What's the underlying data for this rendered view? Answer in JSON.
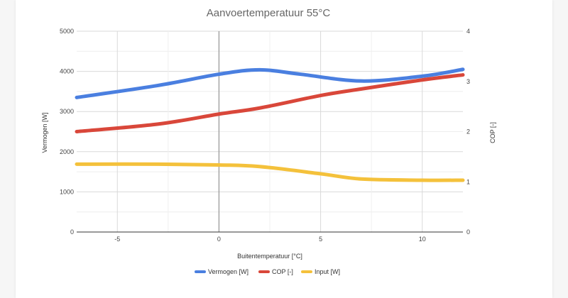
{
  "chart_data": {
    "type": "line",
    "title": "Aanvoertemperatuur 55°C",
    "xlabel": "Buitentemperatuur [°C]",
    "ylabel": "Vermogen [W]",
    "y2label": "COP [-]",
    "xlim": [
      -7,
      12
    ],
    "ylim": [
      0,
      5000
    ],
    "y2lim": [
      0,
      4
    ],
    "x_ticks": [
      -5,
      0,
      5,
      10
    ],
    "y_ticks": [
      0,
      1000,
      2000,
      3000,
      4000,
      5000
    ],
    "y2_ticks": [
      0,
      1,
      2,
      3,
      4
    ],
    "grid": true,
    "legend_position": "bottom",
    "series": [
      {
        "name": "Vermogen [W]",
        "axis": "left",
        "color": "#4a7fe0",
        "x": [
          -7,
          -3,
          0,
          2,
          4,
          7,
          10,
          12
        ],
        "y": [
          3350,
          3650,
          3930,
          4040,
          3930,
          3760,
          3880,
          4050
        ]
      },
      {
        "name": "COP [-]",
        "axis": "right",
        "color": "#d9473a",
        "x": [
          -7,
          -3,
          0,
          2,
          5,
          7,
          10,
          12
        ],
        "y": [
          2.0,
          2.15,
          2.35,
          2.47,
          2.72,
          2.85,
          3.03,
          3.13
        ]
      },
      {
        "name": "Input [W]",
        "axis": "left",
        "color": "#f4c13b",
        "x": [
          -7,
          -3,
          0,
          2,
          5,
          7,
          10,
          12
        ],
        "y": [
          1690,
          1690,
          1670,
          1630,
          1450,
          1320,
          1290,
          1290
        ]
      }
    ]
  }
}
